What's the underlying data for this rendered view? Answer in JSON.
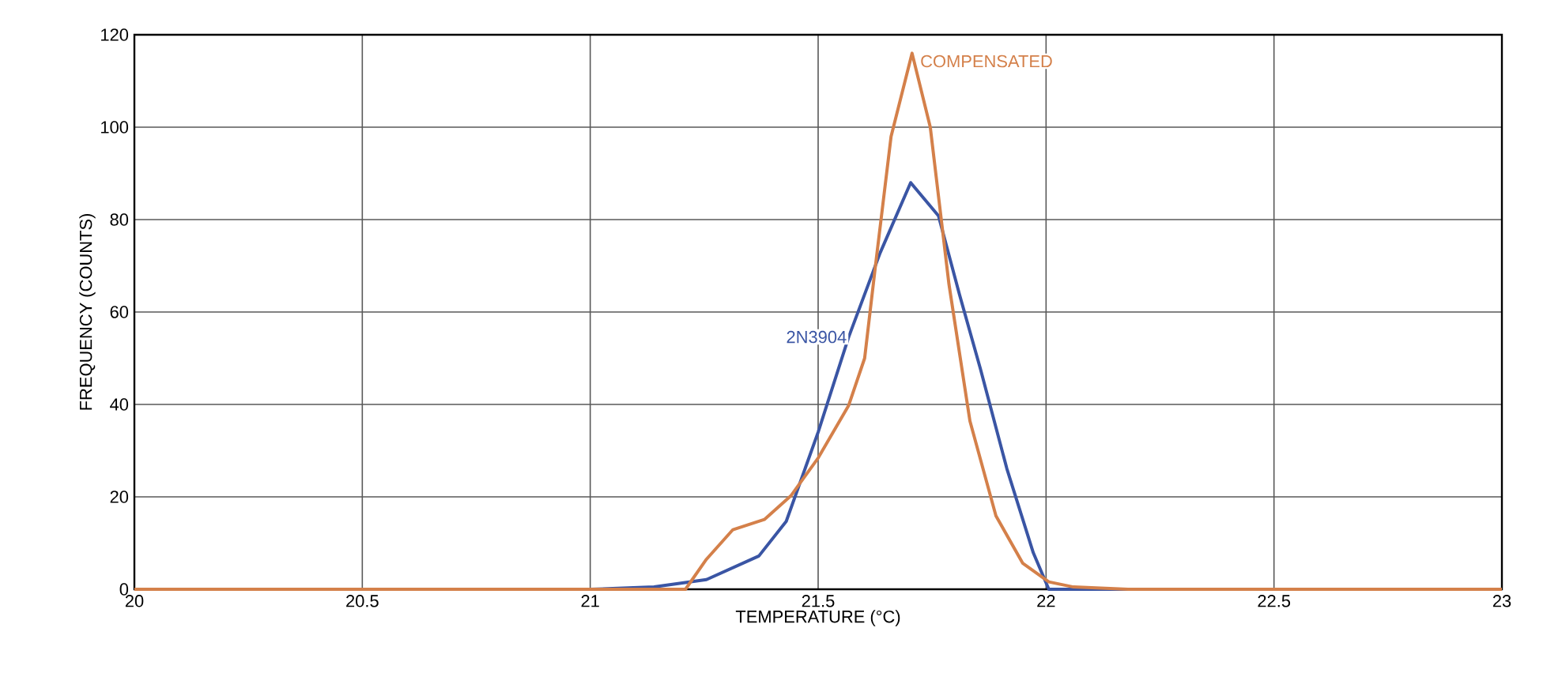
{
  "chart_data": {
    "type": "line",
    "xlabel": "TEMPERATURE (°C)",
    "ylabel": "FREQUENCY (COUNTS)",
    "xlim": [
      20,
      23
    ],
    "ylim": [
      0,
      120
    ],
    "xticks": [
      20,
      20.5,
      21,
      21.5,
      22,
      22.5,
      23
    ],
    "yticks": [
      0,
      20,
      40,
      60,
      80,
      100,
      120
    ],
    "grid": true,
    "line_style": "solid",
    "series": [
      {
        "name": "2N3904",
        "color": "#3a55a4",
        "x": [
          20,
          21.0,
          21.14,
          21.255,
          21.37,
          21.43,
          21.5,
          21.567,
          21.636,
          21.703,
          21.764,
          21.81,
          21.856,
          21.914,
          21.972,
          22.006,
          23
        ],
        "values": [
          0,
          0,
          0.5,
          2.1,
          7.2,
          14.7,
          34,
          54.6,
          72.8,
          88,
          80.8,
          63.8,
          47.7,
          26.1,
          7.9,
          0,
          0
        ]
      },
      {
        "name": "COMPENSATED",
        "color": "#d4804a",
        "x": [
          20,
          21.209,
          21.255,
          21.313,
          21.382,
          21.44,
          21.5,
          21.567,
          21.602,
          21.625,
          21.66,
          21.706,
          21.746,
          21.787,
          21.833,
          21.89,
          21.949,
          22.006,
          22.06,
          22.18,
          23
        ],
        "values": [
          0,
          0,
          6.5,
          12.9,
          15.1,
          20.2,
          28.4,
          39.8,
          50,
          69.4,
          98,
          116,
          100,
          66,
          36.4,
          15.9,
          5.6,
          1.6,
          0.5,
          0,
          0
        ]
      }
    ]
  }
}
